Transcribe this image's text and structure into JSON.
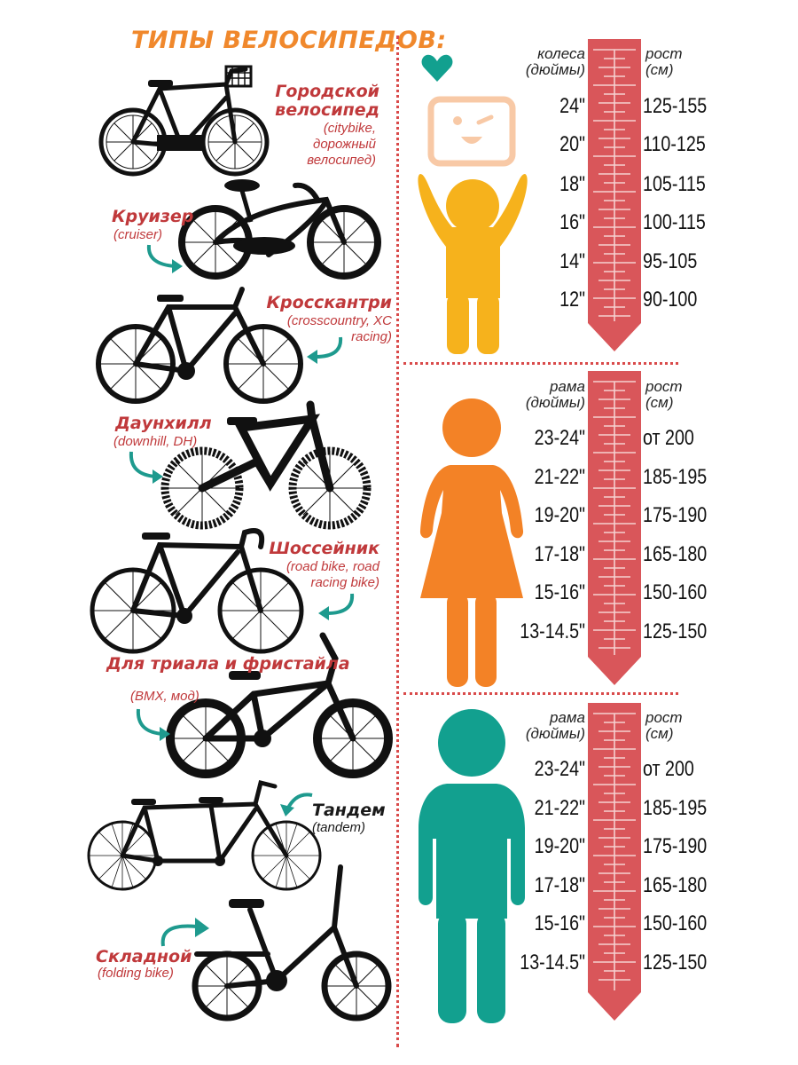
{
  "title": "ТИПЫ ВЕЛОСИПЕДОВ:",
  "bikes": [
    {
      "name": "Городской велосипед",
      "subtitle": "(citybike, дорожный велосипед)"
    },
    {
      "name": "Круизер",
      "subtitle": "(cruiser)"
    },
    {
      "name": "Кросскантри",
      "subtitle": "(crosscountry, XC racing)"
    },
    {
      "name": "Даунхилл",
      "subtitle": "(downhill, DH)"
    },
    {
      "name": "Шоссейник",
      "subtitle": "(road bike, road racing bike)"
    },
    {
      "name": "Для триала и фристайла",
      "subtitle": "(BMX, мод)"
    },
    {
      "name": "Тандем",
      "subtitle": "(tandem)"
    },
    {
      "name": "Складной",
      "subtitle": "(folding bike)"
    }
  ],
  "panels": [
    {
      "figure": "child",
      "left_header": "колеса (дюймы)",
      "right_header": "рост (см)",
      "rows": [
        {
          "size": "24\"",
          "height": "125-155"
        },
        {
          "size": "20\"",
          "height": "110-125"
        },
        {
          "size": "18\"",
          "height": "105-115"
        },
        {
          "size": "16\"",
          "height": "100-115"
        },
        {
          "size": "14\"",
          "height": "95-105"
        },
        {
          "size": "12\"",
          "height": "90-100"
        }
      ]
    },
    {
      "figure": "woman",
      "left_header": "рама (дюймы)",
      "right_header": "рост (см)",
      "rows": [
        {
          "size": "23-24\"",
          "height": "от 200"
        },
        {
          "size": "21-22\"",
          "height": "185-195"
        },
        {
          "size": "19-20\"",
          "height": "175-190"
        },
        {
          "size": "17-18\"",
          "height": "165-180"
        },
        {
          "size": "15-16\"",
          "height": "150-160"
        },
        {
          "size": "13-14.5\"",
          "height": "125-150"
        }
      ]
    },
    {
      "figure": "man",
      "left_header": "рама (дюймы)",
      "right_header": "рост (см)",
      "rows": [
        {
          "size": "23-24\"",
          "height": "от 200"
        },
        {
          "size": "21-22\"",
          "height": "185-195"
        },
        {
          "size": "19-20\"",
          "height": "175-190"
        },
        {
          "size": "17-18\"",
          "height": "165-180"
        },
        {
          "size": "15-16\"",
          "height": "150-160"
        },
        {
          "size": "13-14.5\"",
          "height": "125-150"
        }
      ]
    }
  ],
  "colors": {
    "title": "#f0882c",
    "bike_label": "#c0393b",
    "arrow": "#1e9a8e",
    "ruler": "#d9565a",
    "divider": "#d94a4a",
    "child": "#f6b21c",
    "woman": "#f38226",
    "man": "#12a08f",
    "heart": "#12a08f",
    "face": "#f8c9a6"
  }
}
